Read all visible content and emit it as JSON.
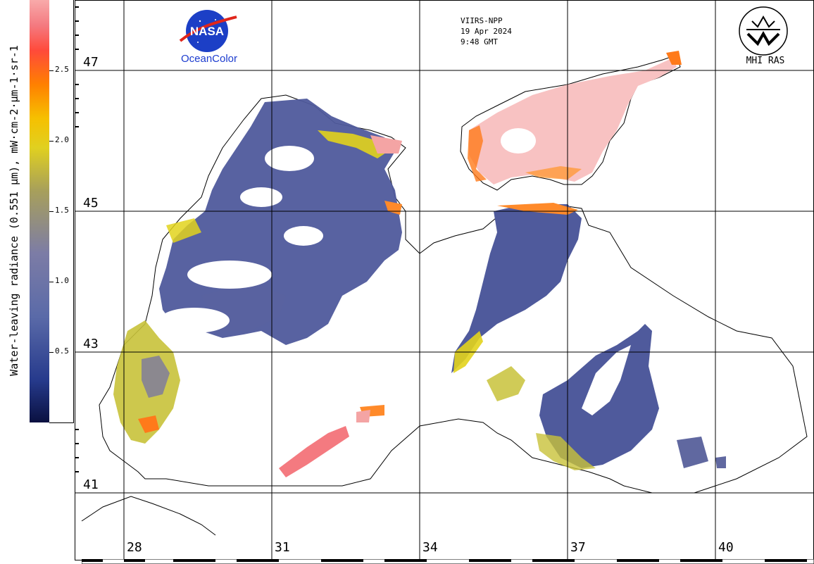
{
  "colorbar": {
    "label": "Water-leaving radiance (0.551 µm), mW·cm-2·µm-1·sr-1",
    "ticks": [
      "2.5",
      "2.0",
      "1.5",
      "1.0",
      "0.5"
    ]
  },
  "header": {
    "nasa_text": "NASA",
    "ocean_color": "OceanColor",
    "sensor": "VIIRS-NPP",
    "date": "19 Apr 2024",
    "time": "9:48 GMT",
    "institute": "MHI RAS"
  },
  "grid": {
    "latitudes": [
      "47",
      "45",
      "43",
      "41"
    ],
    "longitudes": [
      "28",
      "31",
      "34",
      "37",
      "40"
    ]
  },
  "colors": {
    "clear_water": "#4f5a9c",
    "turbid_yellow": "#e2d31c",
    "high_orange": "#ff7a1a",
    "bloom_pink": "#f8c2c2",
    "land": "#ffffff",
    "coastline": "#000000"
  }
}
